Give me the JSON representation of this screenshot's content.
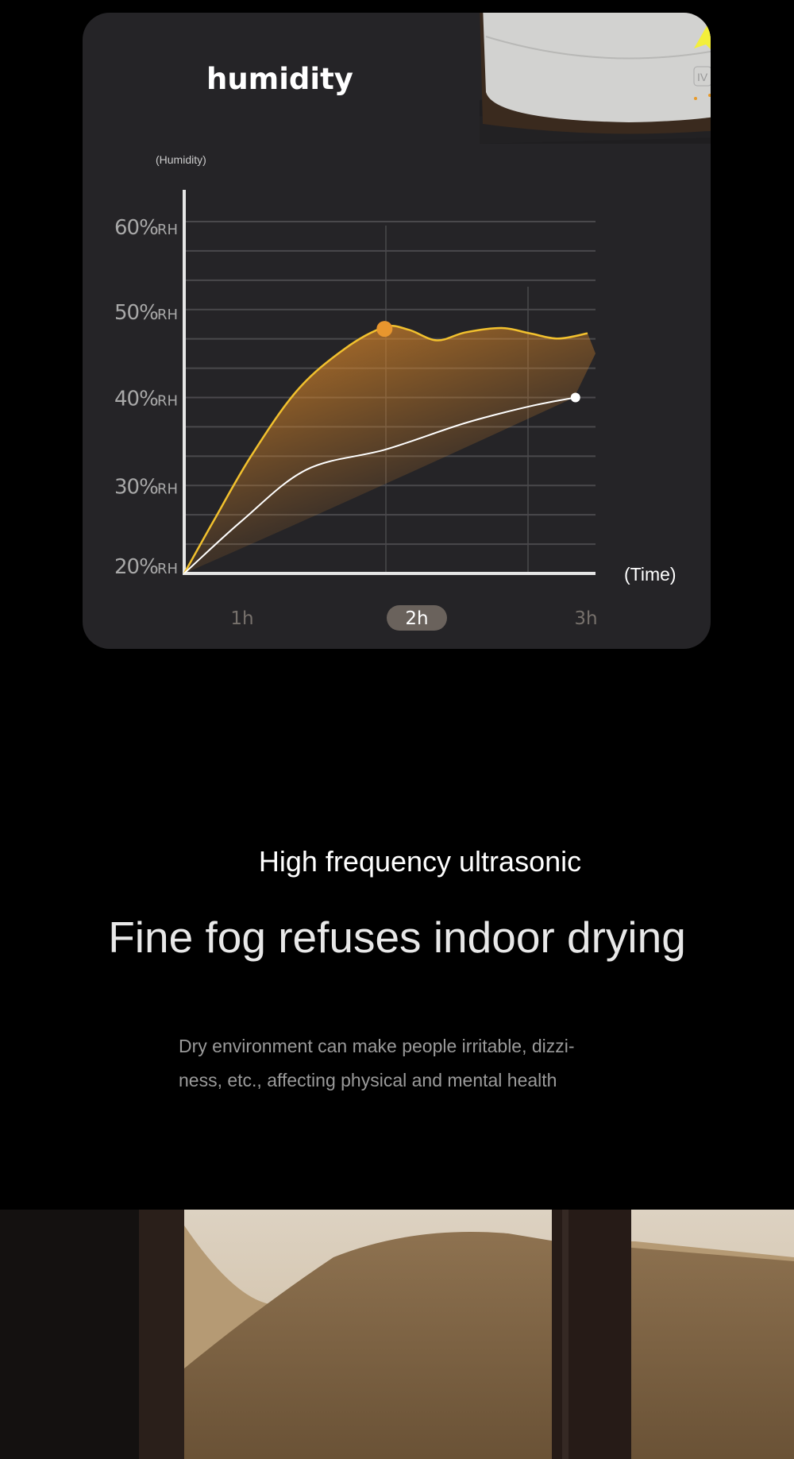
{
  "card": {
    "title": "humidity"
  },
  "chart_data": {
    "type": "line",
    "ylabel": "(Humidity)",
    "xlabel": "(Time)",
    "y_ticks": [
      "60%",
      "50%",
      "40%",
      "30%",
      "20%"
    ],
    "y_unit": "RH",
    "ylim": [
      20,
      60
    ],
    "xlim": [
      0,
      3
    ],
    "x_ticks": [
      "1h",
      "2h",
      "3h"
    ],
    "x_selected": "2h",
    "grid": true,
    "series": [
      {
        "color": "#f2c12e",
        "fill": "#e08a2a",
        "x": [
          0,
          0.22,
          0.5,
          0.84,
          1.19,
          1.49,
          1.67,
          1.88,
          2.09,
          2.36,
          2.57,
          2.78,
          3.0
        ],
        "y": [
          20,
          26.0,
          33.4,
          40.8,
          45.5,
          48.0,
          47.7,
          46.5,
          47.4,
          47.9,
          47.3,
          46.7,
          47.3
        ],
        "marker": {
          "x": 1.49,
          "y": 47.8,
          "color": "#e8962e"
        }
      },
      {
        "color": "#ffffff",
        "x": [
          0,
          0.43,
          0.91,
          1.5,
          2.09,
          2.57,
          2.91
        ],
        "y": [
          20,
          26.0,
          31.8,
          34.1,
          37.1,
          39.0,
          40.0
        ],
        "marker": {
          "x": 2.91,
          "y": 40.0,
          "color": "#ffffff"
        }
      }
    ]
  },
  "hero": {
    "subtitle": "High frequency ultrasonic",
    "headline": "Fine fog refuses indoor drying",
    "paragraph_lines": [
      "Dry environment can make people irritable, dizzi-",
      "ness, etc., affecting physical and mental health"
    ]
  },
  "product": {
    "button_label": "IV"
  }
}
